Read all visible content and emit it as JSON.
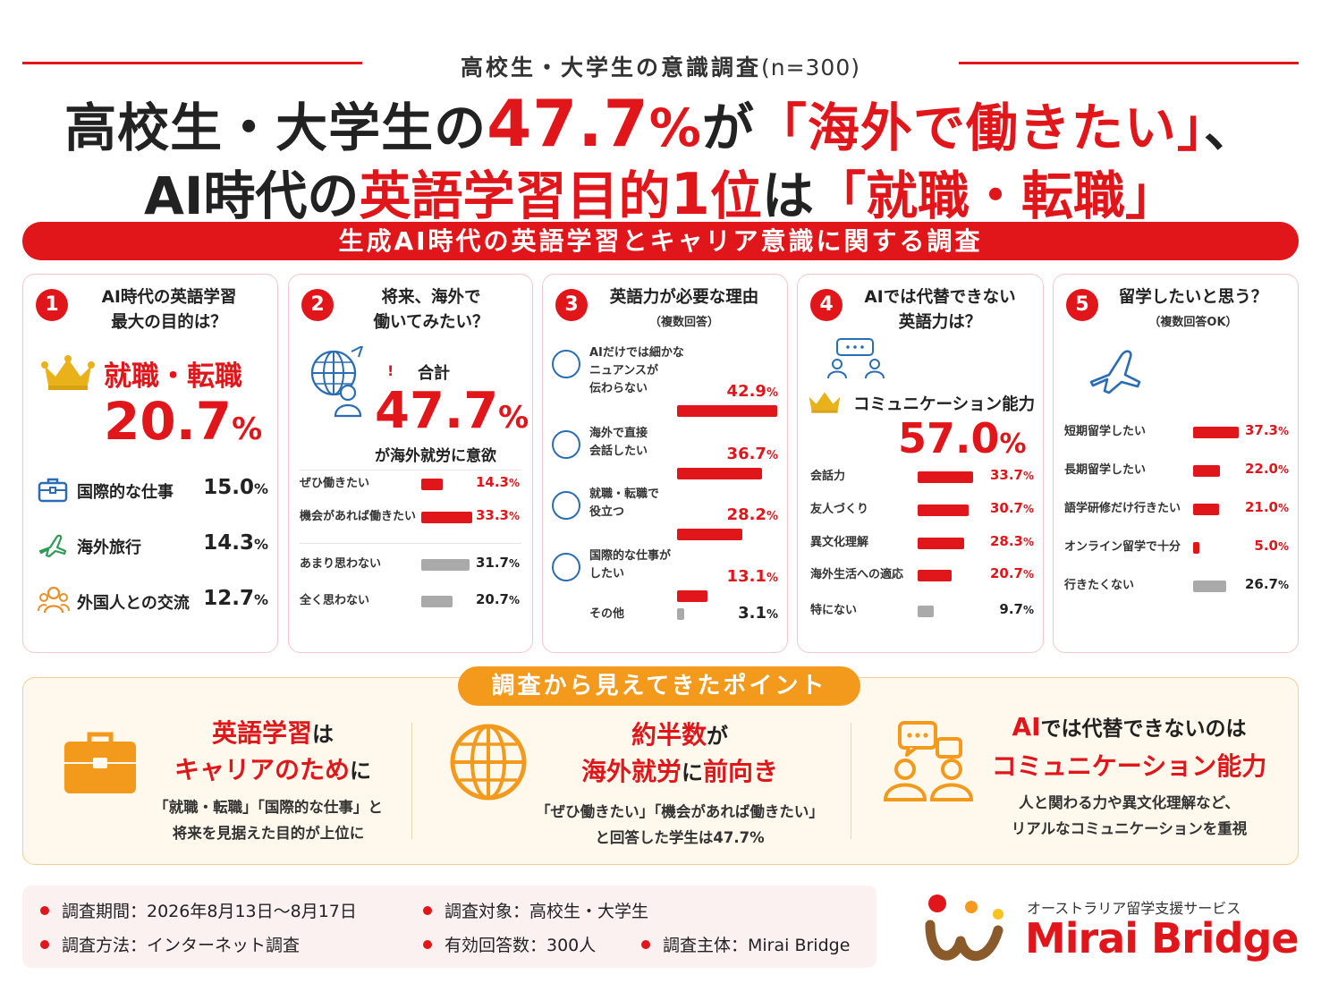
{
  "header": {
    "survey_label": "高校生・大学生の意識調査",
    "sample": "(n=300)",
    "headline1": {
      "a": "高校生・大学生の",
      "b": "47.7",
      "c": "%",
      "d": "が",
      "e": "「海外で働きたい」",
      "f": "、"
    },
    "headline2": {
      "a": "AI時代の",
      "b": "英語学習目的",
      "c": "1",
      "d": "位",
      "e": "は",
      "f": "「就職・転職」"
    },
    "banner": "生成AI時代の英語学習とキャリア意識に関する調査"
  },
  "panel1": {
    "num": "1",
    "title1": "AI時代の英語学習",
    "title2": "最大の目的は？",
    "top_label": "就職・転職",
    "top_value": "20.7",
    "top_unit": "%",
    "items": [
      {
        "label": "国際的な仕事",
        "value": "15.0",
        "unit": "%",
        "icon": "briefcase-icon"
      },
      {
        "label": "海外旅行",
        "value": "14.3",
        "unit": "%",
        "icon": "airplane-icon"
      },
      {
        "label": "外国人との交流",
        "value": "12.7",
        "unit": "%",
        "icon": "people-icon"
      }
    ]
  },
  "panel2": {
    "num": "2",
    "title1": "将来、海外で",
    "title2": "働いてみたい？",
    "total_label": "合計",
    "total_value": "47.7",
    "total_unit": "%",
    "caption": "が海外就労に意欲"
  },
  "panel3": {
    "num": "3",
    "title": "英語力が必要な理由",
    "subtitle": "（複数回答）"
  },
  "panel4": {
    "num": "4",
    "title1": "AIでは代替できない",
    "title2": "英語力は？",
    "top_label": "コミュニケーション能力",
    "top_value": "57.0",
    "top_unit": "%"
  },
  "panel5": {
    "num": "5",
    "title": "留学したいと思う？",
    "subtitle": "（複数回答OK）"
  },
  "chart_data": [
    {
      "type": "bar",
      "title": "将来、海外で働いてみたい？",
      "categories": [
        "ぜひ働きたい",
        "機会があれば働きたい",
        "あまり思わない",
        "全く思わない"
      ],
      "values": [
        14.3,
        33.3,
        31.7,
        20.7
      ],
      "unit": "%",
      "colors": [
        "#e0161b",
        "#e0161b",
        "#aaaaaa",
        "#aaaaaa"
      ]
    },
    {
      "type": "bar",
      "title": "英語力が必要な理由",
      "categories": [
        "AIだけでは細かなニュアンスが伝わらない",
        "海外で直接会話したい",
        "就職・転職で役立つ",
        "国際的な仕事がしたい",
        "その他"
      ],
      "values": [
        42.9,
        36.7,
        28.2,
        13.1,
        3.1
      ],
      "unit": "%",
      "colors": [
        "#e0161b",
        "#e0161b",
        "#e0161b",
        "#e0161b",
        "#aaaaaa"
      ]
    },
    {
      "type": "bar",
      "title": "AIでは代替できない英語力は？",
      "categories": [
        "会話力",
        "友人づくり",
        "異文化理解",
        "海外生活への適応",
        "特にない"
      ],
      "values": [
        33.7,
        30.7,
        28.3,
        20.7,
        9.7
      ],
      "unit": "%",
      "colors": [
        "#e0161b",
        "#e0161b",
        "#e0161b",
        "#e0161b",
        "#aaaaaa"
      ]
    },
    {
      "type": "bar",
      "title": "留学したいと思う？",
      "categories": [
        "短期留学したい",
        "長期留学したい",
        "語学研修だけ行きたい",
        "オンライン留学で十分",
        "行きたくない"
      ],
      "values": [
        37.3,
        22.0,
        21.0,
        5.0,
        26.7
      ],
      "unit": "%",
      "colors": [
        "#e0161b",
        "#e0161b",
        "#e0161b",
        "#e0161b",
        "#aaaaaa"
      ]
    }
  ],
  "summary": {
    "tag": "調査から見えてきたポイント",
    "p1": {
      "h1a": "英語学習",
      "h1b": "は",
      "h2a": "キャリアのため",
      "h2b": "に",
      "b1": "「就職・転職」「国際的な仕事」と",
      "b2": "将来を見据えた目的が上位に"
    },
    "p2": {
      "h1a": "約半数",
      "h1b": "が",
      "h2a": "海外就労",
      "h2b": "に",
      "h2c": "前向き",
      "b1": "「ぜひ働きたい」「機会があれば働きたい」",
      "b2": "と回答した学生は47.7%"
    },
    "p3": {
      "h1a": "AI",
      "h1b": "では代替できないのは",
      "h2": "コミュニケーション能力",
      "b1": "人と関わる力や異文化理解など、",
      "b2": "リアルなコミュニケーションを重視"
    }
  },
  "footer": {
    "period": "調査期間：2026年8月13日～8月17日",
    "method": "調査方法：インターネット調査",
    "target": "調査対象：高校生・大学生",
    "responses": "有効回答数：300人",
    "organizer": "調査主体：Mirai Bridge",
    "brand_tagline": "オーストラリア留学支援サービス",
    "brand_name": "Mirai Bridge",
    "accent": "#e0161b",
    "summary_accent": "#f39a1d"
  }
}
